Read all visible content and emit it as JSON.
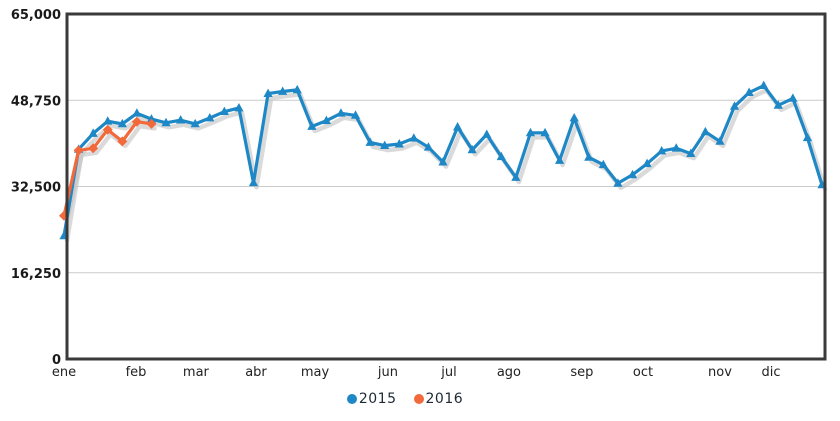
{
  "chart_data": {
    "type": "line",
    "title": "",
    "xlabel": "",
    "ylabel": "",
    "y_axis": {
      "min": 0,
      "max": 65000,
      "ticks": [
        {
          "label": "65,000",
          "value": 65000
        },
        {
          "label": "48,750",
          "value": 48750
        },
        {
          "label": "32,500",
          "value": 32500
        },
        {
          "label": "16,250",
          "value": 16250
        },
        {
          "label": "0",
          "value": 0
        }
      ],
      "gridline_values": [
        48750,
        32500,
        16250
      ]
    },
    "x_axis": {
      "unit": "week",
      "months": [
        {
          "label": "ene",
          "week": 0
        },
        {
          "label": "feb",
          "week": 4.94
        },
        {
          "label": "mar",
          "week": 9.05
        },
        {
          "label": "abr",
          "week": 13.17
        },
        {
          "label": "may",
          "week": 17.22
        },
        {
          "label": "jun",
          "week": 22.22
        },
        {
          "label": "jul",
          "week": 26.41
        },
        {
          "label": "ago",
          "week": 30.52
        },
        {
          "label": "sep",
          "week": 35.53
        },
        {
          "label": "oct",
          "week": 39.72
        },
        {
          "label": "nov",
          "week": 45.0
        },
        {
          "label": "dic",
          "week": 48.5
        }
      ]
    },
    "series": [
      {
        "name": "2015",
        "color": "#1e87c6",
        "marker": "triangle",
        "start_week": 0,
        "values": [
          23200,
          39500,
          42500,
          44800,
          44300,
          46300,
          45200,
          44500,
          45000,
          44300,
          45400,
          46600,
          47300,
          33200,
          50000,
          50400,
          50700,
          43800,
          44900,
          46300,
          45900,
          40800,
          40200,
          40500,
          41600,
          39900,
          37100,
          43700,
          39400,
          42300,
          38100,
          34200,
          42600,
          42600,
          37400,
          45400,
          38000,
          36600,
          33100,
          34700,
          36800,
          39200,
          39700,
          38700,
          42800,
          41000,
          47600,
          50200,
          51500,
          47800,
          49100,
          41700,
          32800
        ]
      },
      {
        "name": "2016",
        "color": "#f2693c",
        "marker": "diamond",
        "start_week": 0,
        "values": [
          27000,
          39300,
          39700,
          43200,
          41000,
          44700,
          44300
        ]
      }
    ],
    "grid": true,
    "legend_position": "bottom",
    "style": {
      "border_color": "#3a3a3a",
      "grid_color": "#cccccc",
      "shadow_color": "#c2c2c2",
      "background": "#ffffff",
      "tick_text_color": "#1a1a1a"
    }
  },
  "legend": {
    "items": [
      {
        "label": "2015",
        "color": "#1e87c6"
      },
      {
        "label": "2016",
        "color": "#f2693c"
      }
    ]
  }
}
